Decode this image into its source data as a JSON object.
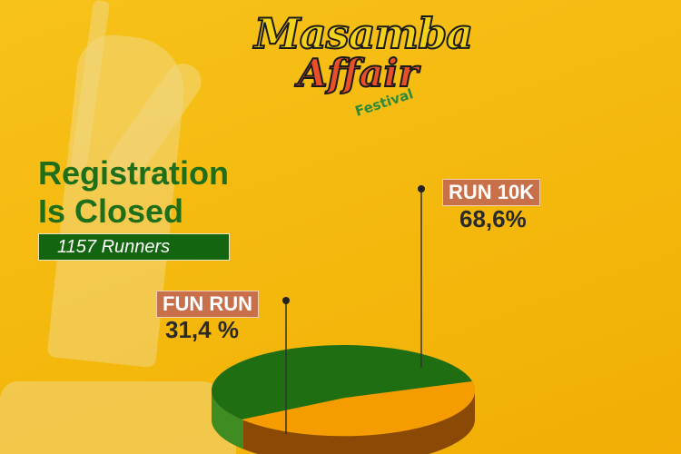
{
  "logo": {
    "line1": "Masamba",
    "line2": "Affair",
    "line3": "Festival"
  },
  "title_line1": "Registration",
  "title_line2": "Is Closed",
  "runners_badge": "1157 Runners",
  "colors": {
    "background": "#f4b70c",
    "run10k": "#1f6e12",
    "funrun": "#f59d00",
    "title": "#1f6e1a",
    "tag": "#c8704a"
  },
  "chart_data": {
    "type": "pie",
    "style": "3d",
    "slices": [
      {
        "name": "RUN 10K",
        "value": 68.6,
        "label": "68,6%",
        "color": "#1f6e12"
      },
      {
        "name": "FUN RUN",
        "value": 31.4,
        "label": "31,4 %",
        "color": "#f59d00"
      }
    ]
  }
}
